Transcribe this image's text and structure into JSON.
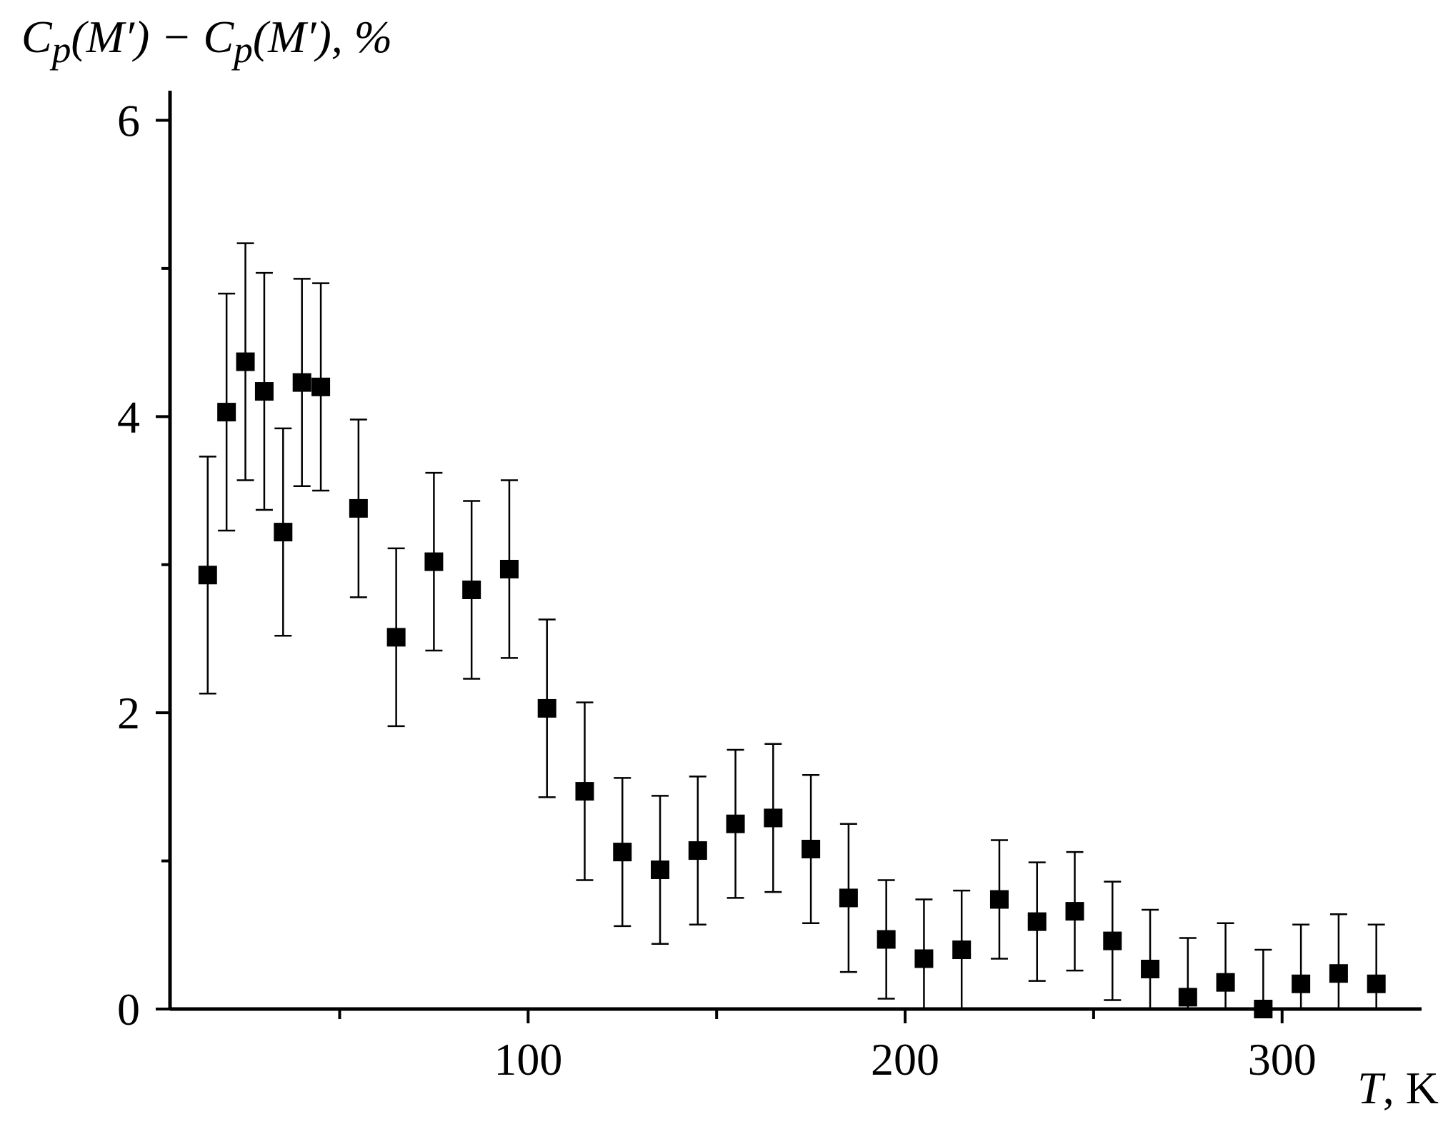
{
  "chart_data": {
    "type": "scatter",
    "title": "",
    "ylabel": "C<sub>p</sub>(M′) − C<sub>p</sub>(M′), %",
    "ylabel_text": "Cp(M′) − Cp(M′), %",
    "xlabel_var": "T",
    "xlabel_unit": ", K",
    "xlim": [
      5,
      337
    ],
    "ylim": [
      0,
      6.2
    ],
    "x_ticks": [
      100,
      200,
      300
    ],
    "x_minor_ticks": [
      50,
      150,
      250
    ],
    "y_ticks": [
      0,
      2,
      4,
      6
    ],
    "y_minor_ticks": [
      1,
      3,
      5
    ],
    "grid": false,
    "marker": "square",
    "color": "#000000",
    "series": [
      {
        "points": [
          {
            "x": 15,
            "y": 2.93,
            "err": 0.8
          },
          {
            "x": 20,
            "y": 4.03,
            "err": 0.8
          },
          {
            "x": 25,
            "y": 4.37,
            "err": 0.8
          },
          {
            "x": 30,
            "y": 4.17,
            "err": 0.8
          },
          {
            "x": 35,
            "y": 3.22,
            "err": 0.7
          },
          {
            "x": 40,
            "y": 4.23,
            "err": 0.7
          },
          {
            "x": 45,
            "y": 4.2,
            "err": 0.7
          },
          {
            "x": 55,
            "y": 3.38,
            "err": 0.6
          },
          {
            "x": 65,
            "y": 2.51,
            "err": 0.6
          },
          {
            "x": 75,
            "y": 3.02,
            "err": 0.6
          },
          {
            "x": 85,
            "y": 2.83,
            "err": 0.6
          },
          {
            "x": 95,
            "y": 2.97,
            "err": 0.6
          },
          {
            "x": 105,
            "y": 2.03,
            "err": 0.6
          },
          {
            "x": 115,
            "y": 1.47,
            "err": 0.6
          },
          {
            "x": 125,
            "y": 1.06,
            "err": 0.5
          },
          {
            "x": 135,
            "y": 0.94,
            "err": 0.5
          },
          {
            "x": 145,
            "y": 1.07,
            "err": 0.5
          },
          {
            "x": 155,
            "y": 1.25,
            "err": 0.5
          },
          {
            "x": 165,
            "y": 1.29,
            "err": 0.5
          },
          {
            "x": 175,
            "y": 1.08,
            "err": 0.5
          },
          {
            "x": 185,
            "y": 0.75,
            "err": 0.5
          },
          {
            "x": 195,
            "y": 0.47,
            "err": 0.4
          },
          {
            "x": 205,
            "y": 0.34,
            "err": 0.4
          },
          {
            "x": 215,
            "y": 0.4,
            "err": 0.4
          },
          {
            "x": 225,
            "y": 0.74,
            "err": 0.4
          },
          {
            "x": 235,
            "y": 0.59,
            "err": 0.4
          },
          {
            "x": 245,
            "y": 0.66,
            "err": 0.4
          },
          {
            "x": 255,
            "y": 0.46,
            "err": 0.4
          },
          {
            "x": 265,
            "y": 0.27,
            "err": 0.4
          },
          {
            "x": 275,
            "y": 0.08,
            "err": 0.4
          },
          {
            "x": 285,
            "y": 0.18,
            "err": 0.4
          },
          {
            "x": 295,
            "y": 0.0,
            "err": 0.4
          },
          {
            "x": 305,
            "y": 0.17,
            "err": 0.4
          },
          {
            "x": 315,
            "y": 0.24,
            "err": 0.4
          },
          {
            "x": 325,
            "y": 0.17,
            "err": 0.4
          }
        ]
      }
    ]
  }
}
